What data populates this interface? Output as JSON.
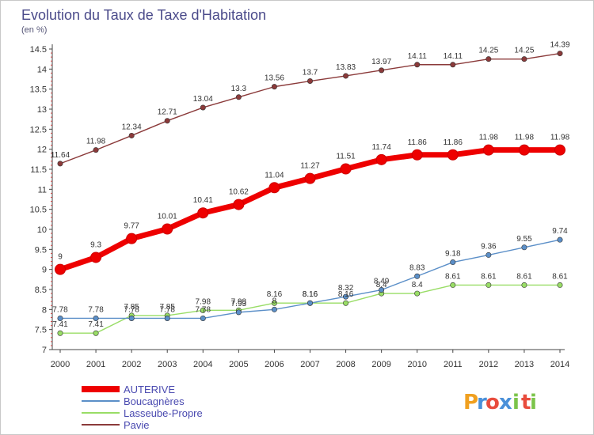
{
  "chart_data": {
    "type": "line",
    "title": "Evolution du Taux de Taxe d'Habitation",
    "unit_label": "(en %)",
    "x": [
      "2000",
      "2001",
      "2002",
      "2003",
      "2004",
      "2005",
      "2006",
      "2007",
      "2008",
      "2009",
      "2010",
      "2011",
      "2012",
      "2013",
      "2014"
    ],
    "y_ticks": [
      "7",
      "7.5",
      "8",
      "8.5",
      "9",
      "9.5",
      "10",
      "10.5",
      "11",
      "11.5",
      "12",
      "12.5",
      "13",
      "13.5",
      "14",
      "14.5"
    ],
    "ylim": [
      7,
      14.5
    ],
    "grid": false,
    "legend_position": "bottom-left",
    "series": [
      {
        "name": "AUTERIVE",
        "color": "#ee0000",
        "values": [
          9,
          9.3,
          9.77,
          10.01,
          10.41,
          10.62,
          11.04,
          11.27,
          11.51,
          11.74,
          11.86,
          11.86,
          11.98,
          11.98,
          11.98
        ],
        "labels": [
          "9",
          "9.3",
          "9.77",
          "10.01",
          "10.41",
          "10.62",
          "11.04",
          "11.27",
          "11.51",
          "11.74",
          "11.86",
          "11.86",
          "11.98",
          "11.98",
          "11.98"
        ]
      },
      {
        "name": "Boucagnères",
        "color": "#5b8fc8",
        "values": [
          7.78,
          7.78,
          7.78,
          7.78,
          7.78,
          7.93,
          8,
          8.16,
          8.32,
          8.49,
          8.83,
          9.18,
          9.36,
          9.55,
          9.74
        ],
        "labels": [
          "7.78",
          "7.78",
          "7.78",
          "7.78",
          "7.78",
          "7.93",
          "8",
          "8.16",
          "8.32",
          "8.49",
          "8.83",
          "9.18",
          "9.36",
          "9.55",
          "9.74"
        ]
      },
      {
        "name": "Lasseube-Propre",
        "color": "#99dd66",
        "values": [
          7.41,
          7.41,
          7.85,
          7.85,
          7.98,
          7.98,
          8.16,
          8.16,
          8.16,
          8.4,
          8.4,
          8.61,
          8.61,
          8.61,
          8.61
        ],
        "labels": [
          "7.41",
          "7.41",
          "7.85",
          "7.85",
          "7.98",
          "7.98",
          "8.16",
          "8.16",
          "8.16",
          "8.4",
          "8.4",
          "8.61",
          "8.61",
          "8.61",
          "8.61"
        ]
      },
      {
        "name": "Pavie",
        "color": "#8b3a3a",
        "values": [
          11.64,
          11.98,
          12.34,
          12.71,
          13.04,
          13.3,
          13.56,
          13.7,
          13.83,
          13.97,
          14.11,
          14.11,
          14.25,
          14.25,
          14.39
        ],
        "labels": [
          "11.64",
          "11.98",
          "12.34",
          "12.71",
          "13.04",
          "13.3",
          "13.56",
          "13.7",
          "13.83",
          "13.97",
          "14.11",
          "14.11",
          "14.25",
          "14.25",
          "14.39"
        ]
      }
    ]
  },
  "brand": {
    "letters": [
      "P",
      "r",
      "o",
      "x",
      "i",
      "t",
      "i"
    ],
    "colors": [
      "#f0a020",
      "#4a90d9",
      "#e84c3d",
      "#4a90d9",
      "#7cc44a",
      "#e84c3d",
      "#7cc44a"
    ]
  }
}
